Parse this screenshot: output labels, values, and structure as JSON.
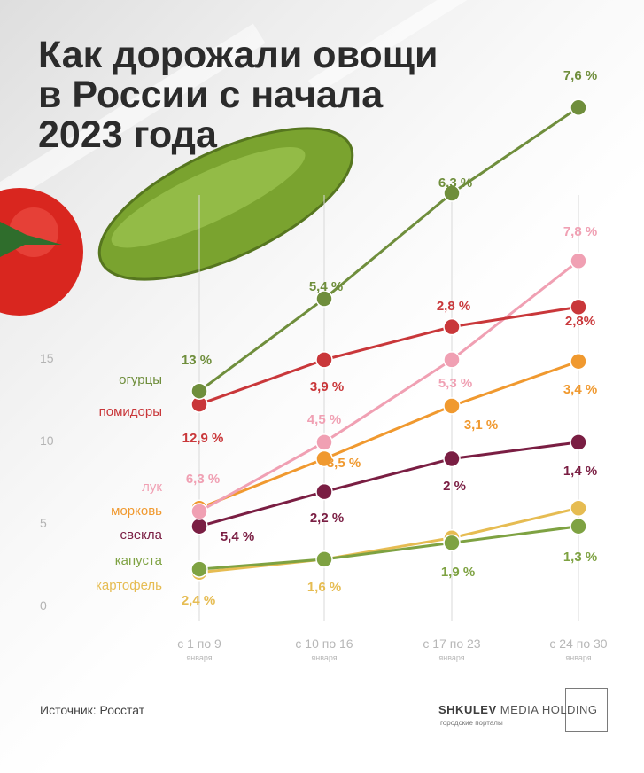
{
  "title": {
    "line1": "Как дорожали овощи",
    "line2": "в России с начала",
    "line3": "2023 года"
  },
  "source": "Источник: Росстат",
  "logo": {
    "brand": "SHKULEV",
    "rest": "MEDIA HOLDING",
    "sub": "городские порталы"
  },
  "chart_data": {
    "type": "line",
    "title": "Как дорожали овощи в России с начала 2023 года",
    "x_categories": [
      {
        "label": "с 1 по 9",
        "sub": "января"
      },
      {
        "label": "с 10 по 16",
        "sub": "января"
      },
      {
        "label": "с 17 по 23",
        "sub": "января"
      },
      {
        "label": "с 24 по 30",
        "sub": "января"
      }
    ],
    "y_ticks": [
      0,
      5,
      10,
      15
    ],
    "ylim": [
      0,
      33
    ],
    "grid": "vertical",
    "legend": "left",
    "series": [
      {
        "name": "огурцы",
        "color": "#6f8e3c",
        "values": [
          13,
          18.6,
          25,
          30.2
        ],
        "labels": [
          "13 %",
          "5,4 %",
          "6,3 %",
          "7,6 %"
        ]
      },
      {
        "name": "помидоры",
        "color": "#c9373a",
        "values": [
          12.2,
          14.9,
          16.9,
          18.1
        ],
        "labels": [
          "12,9 %",
          "3,9 %",
          "2,8 %",
          "2,8%"
        ]
      },
      {
        "name": "лук",
        "color": "#f0a0b3",
        "values": [
          5.7,
          9.9,
          14.9,
          20.9
        ],
        "labels": [
          "6,3 %",
          "4,5 %",
          "5,3 %",
          "7,8 %"
        ]
      },
      {
        "name": "морковь",
        "color": "#f0992f",
        "values": [
          5.9,
          8.9,
          12.1,
          14.8
        ],
        "labels": [
          null,
          "3,5 %",
          "3,1 %",
          "3,4 %"
        ]
      },
      {
        "name": "свекла",
        "color": "#7a1e43",
        "values": [
          4.8,
          6.9,
          8.9,
          9.9
        ],
        "labels": [
          "5,4 %",
          "2,2 %",
          "2 %",
          "1,4 %"
        ]
      },
      {
        "name": "капуста",
        "color": "#7ea242",
        "values": [
          2.2,
          2.8,
          3.8,
          4.8
        ],
        "labels": [
          null,
          null,
          "1,9 %",
          "1,3 %"
        ]
      },
      {
        "name": "картофель",
        "color": "#e6bc52",
        "values": [
          2,
          2.8,
          4.1,
          5.9
        ],
        "labels": [
          "2,4 %",
          "1,6 %",
          null,
          null
        ]
      }
    ]
  }
}
